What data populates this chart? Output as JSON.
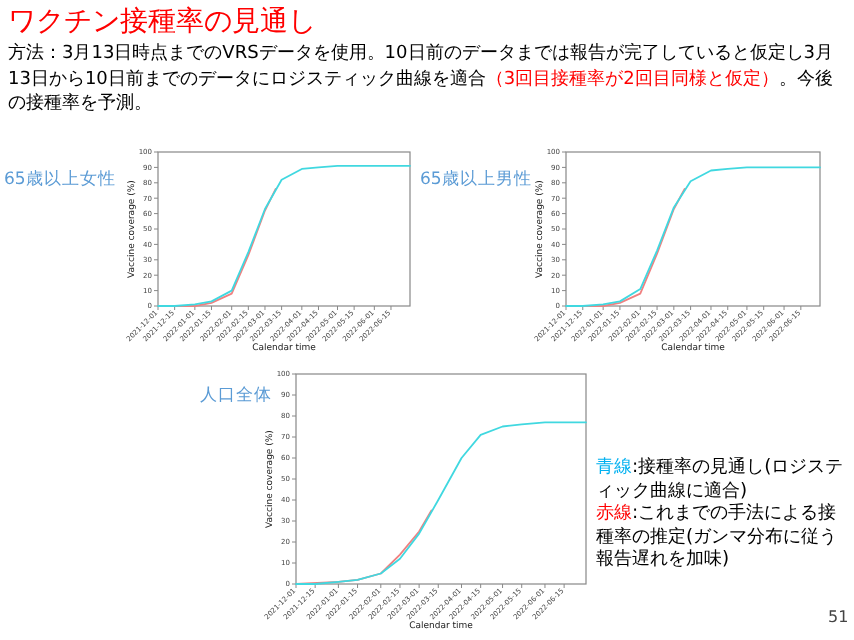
{
  "chart_data": [
    {
      "type": "other",
      "title": "ワクチン接種率の見通し",
      "annotations": [
        "方法：3月13日時点までのVRSデータを使用。10日前のデータまでは報告が完了していると仮定し3月13日から10日前までのデータにロジスティック曲線を適合",
        "（3回目接種率が2回目同様と仮定）",
        "。今後の接種率を予測。"
      ]
    },
    {
      "type": "line",
      "title": "65歳以上女性",
      "xlabel": "Calendar time",
      "ylabel": "Vaccine coverage (%)",
      "xlim": [
        "2021-12-01",
        "2022-07-01"
      ],
      "ylim": [
        0,
        100
      ],
      "yticks": [
        0,
        10,
        20,
        30,
        40,
        50,
        60,
        70,
        80,
        90,
        100
      ],
      "xticks": [
        "2021-12-01",
        "2021-12-15",
        "2022-01-01",
        "2022-01-15",
        "2022-02-01",
        "2022-02-15",
        "2022-03-01",
        "2022-03-15",
        "2022-04-01",
        "2022-04-15",
        "2022-05-01",
        "2022-05-15",
        "2022-06-01",
        "2022-06-15"
      ],
      "series": [
        {
          "color": "#f08080",
          "x": [
            "2021-12-01",
            "2022-01-01",
            "2022-01-15",
            "2022-02-01",
            "2022-02-15",
            "2022-03-01",
            "2022-03-10"
          ],
          "values": [
            0,
            0,
            2,
            8,
            33,
            62,
            76
          ]
        },
        {
          "color": "#40d8e0",
          "x": [
            "2021-12-01",
            "2021-12-15",
            "2022-01-01",
            "2022-01-15",
            "2022-02-01",
            "2022-02-15",
            "2022-03-01",
            "2022-03-15",
            "2022-04-01",
            "2022-04-15",
            "2022-05-01",
            "2022-05-15",
            "2022-06-01",
            "2022-06-15",
            "2022-07-01"
          ],
          "values": [
            0,
            0,
            1,
            3,
            10,
            35,
            63,
            82,
            89,
            90,
            91,
            91,
            91,
            91,
            91
          ]
        }
      ]
    },
    {
      "type": "line",
      "title": "65歳以上男性",
      "xlabel": "Calendar time",
      "ylabel": "Vaccine coverage (%)",
      "xlim": [
        "2021-12-01",
        "2022-07-01"
      ],
      "ylim": [
        0,
        100
      ],
      "yticks": [
        0,
        10,
        20,
        30,
        40,
        50,
        60,
        70,
        80,
        90,
        100
      ],
      "xticks": [
        "2021-12-01",
        "2021-12-15",
        "2022-01-01",
        "2022-01-15",
        "2022-02-01",
        "2022-02-15",
        "2022-03-01",
        "2022-03-15",
        "2022-04-01",
        "2022-04-15",
        "2022-05-01",
        "2022-05-15",
        "2022-06-01",
        "2022-06-15"
      ],
      "series": [
        {
          "color": "#f08080",
          "x": [
            "2021-12-01",
            "2022-01-01",
            "2022-01-15",
            "2022-02-01",
            "2022-02-15",
            "2022-03-01",
            "2022-03-10"
          ],
          "values": [
            0,
            0,
            2,
            8,
            34,
            63,
            76
          ]
        },
        {
          "color": "#40d8e0",
          "x": [
            "2021-12-01",
            "2021-12-15",
            "2022-01-01",
            "2022-01-15",
            "2022-02-01",
            "2022-02-15",
            "2022-03-01",
            "2022-03-15",
            "2022-04-01",
            "2022-04-15",
            "2022-05-01",
            "2022-05-15",
            "2022-06-01",
            "2022-06-15",
            "2022-07-01"
          ],
          "values": [
            0,
            0,
            1,
            3,
            11,
            36,
            64,
            81,
            88,
            89,
            90,
            90,
            90,
            90,
            90
          ]
        }
      ]
    },
    {
      "type": "line",
      "title": "人口全体",
      "xlabel": "Calendar time",
      "ylabel": "Vaccine coverage (%)",
      "xlim": [
        "2021-12-01",
        "2022-07-01"
      ],
      "ylim": [
        0,
        100
      ],
      "yticks": [
        0,
        10,
        20,
        30,
        40,
        50,
        60,
        70,
        80,
        90,
        100
      ],
      "xticks": [
        "2021-12-01",
        "2021-12-15",
        "2022-01-01",
        "2022-01-15",
        "2022-02-01",
        "2022-02-15",
        "2022-03-01",
        "2022-03-15",
        "2022-04-01",
        "2022-04-15",
        "2022-05-01",
        "2022-05-15",
        "2022-06-01",
        "2022-06-15"
      ],
      "series": [
        {
          "color": "#f08080",
          "x": [
            "2021-12-01",
            "2022-01-01",
            "2022-01-15",
            "2022-02-01",
            "2022-02-15",
            "2022-03-01",
            "2022-03-10"
          ],
          "values": [
            0,
            1,
            2,
            5,
            14,
            25,
            35
          ]
        },
        {
          "color": "#40d8e0",
          "x": [
            "2021-12-01",
            "2021-12-15",
            "2022-01-01",
            "2022-01-15",
            "2022-02-01",
            "2022-02-15",
            "2022-03-01",
            "2022-03-15",
            "2022-04-01",
            "2022-04-15",
            "2022-05-01",
            "2022-05-15",
            "2022-06-01",
            "2022-06-15",
            "2022-07-01"
          ],
          "values": [
            0,
            0,
            1,
            2,
            5,
            12,
            24,
            40,
            60,
            71,
            75,
            76,
            77,
            77,
            77
          ]
        }
      ]
    },
    {
      "type": "other",
      "annotations": [
        "青線",
        ":接種率の見通し(ロジスティック曲線に適合)",
        "赤線",
        ":これまでの手法による接種率の推定(ガンマ分布に従う報告遅れを加味)",
        "51"
      ]
    }
  ]
}
